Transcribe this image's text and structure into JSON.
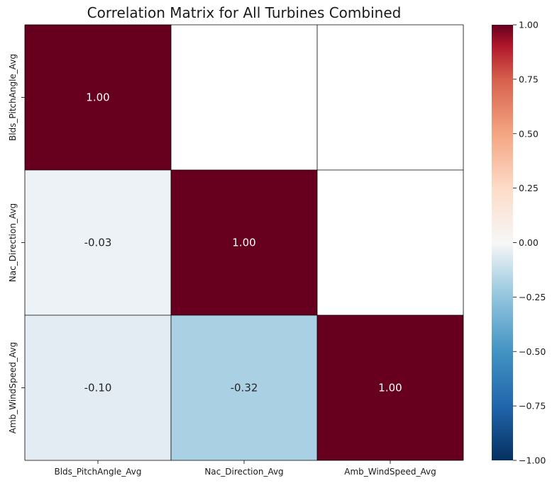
{
  "chart_data": {
    "type": "heatmap",
    "title": "Correlation Matrix for All Turbines Combined",
    "variables": [
      "Blds_PitchAngle_Avg",
      "Nac_Direction_Avg",
      "Amb_WindSpeed_Avg"
    ],
    "row_labels": [
      "Blds_PitchAngle_Avg",
      "Nac_Direction_Avg",
      "Amb_WindSpeed_Avg"
    ],
    "col_labels": [
      "Blds_PitchAngle_Avg",
      "Nac_Direction_Avg",
      "Amb_WindSpeed_Avg"
    ],
    "matrix": [
      [
        1.0,
        null,
        null
      ],
      [
        -0.03,
        1.0,
        null
      ],
      [
        -0.1,
        -0.32,
        1.0
      ]
    ],
    "cell_labels": [
      [
        "1.00",
        "",
        ""
      ],
      [
        "-0.03",
        "1.00",
        ""
      ],
      [
        "-0.10",
        "-0.32",
        "1.00"
      ]
    ],
    "mask": "upper triangle",
    "colormap": "RdBu_r",
    "vmin": -1.0,
    "vmax": 1.0,
    "colorbar_ticks": [
      1.0,
      0.75,
      0.5,
      0.25,
      0.0,
      -0.25,
      -0.5,
      -0.75,
      -1.0
    ],
    "colorbar_tick_labels": [
      "1.00",
      "0.75",
      "0.50",
      "0.25",
      "0.00",
      "−0.25",
      "−0.50",
      "−0.75",
      "−1.00"
    ],
    "colormap_stops": [
      {
        "v": -1.0,
        "color": "#053061"
      },
      {
        "v": -0.75,
        "color": "#2166ac"
      },
      {
        "v": -0.5,
        "color": "#4393c3"
      },
      {
        "v": -0.25,
        "color": "#92c5de"
      },
      {
        "v": 0.0,
        "color": "#f7f7f7"
      },
      {
        "v": 0.25,
        "color": "#fddbc7"
      },
      {
        "v": 0.5,
        "color": "#f4a582"
      },
      {
        "v": 0.75,
        "color": "#d6604d"
      },
      {
        "v": 0.9,
        "color": "#b2182b"
      },
      {
        "v": 1.0,
        "color": "#67001f"
      }
    ],
    "cell_colors": [
      [
        "#67001f",
        null,
        null
      ],
      [
        "#edf2f6",
        "#67001f",
        null
      ],
      [
        "#e3ebf3",
        "#aad0e4",
        "#67001f"
      ]
    ],
    "cell_text_colors": [
      [
        "#ffffff",
        null,
        null
      ],
      [
        "#262626",
        "#ffffff",
        null
      ],
      [
        "#262626",
        "#262626",
        "#ffffff"
      ]
    ],
    "grid_line_color": "#000000"
  }
}
